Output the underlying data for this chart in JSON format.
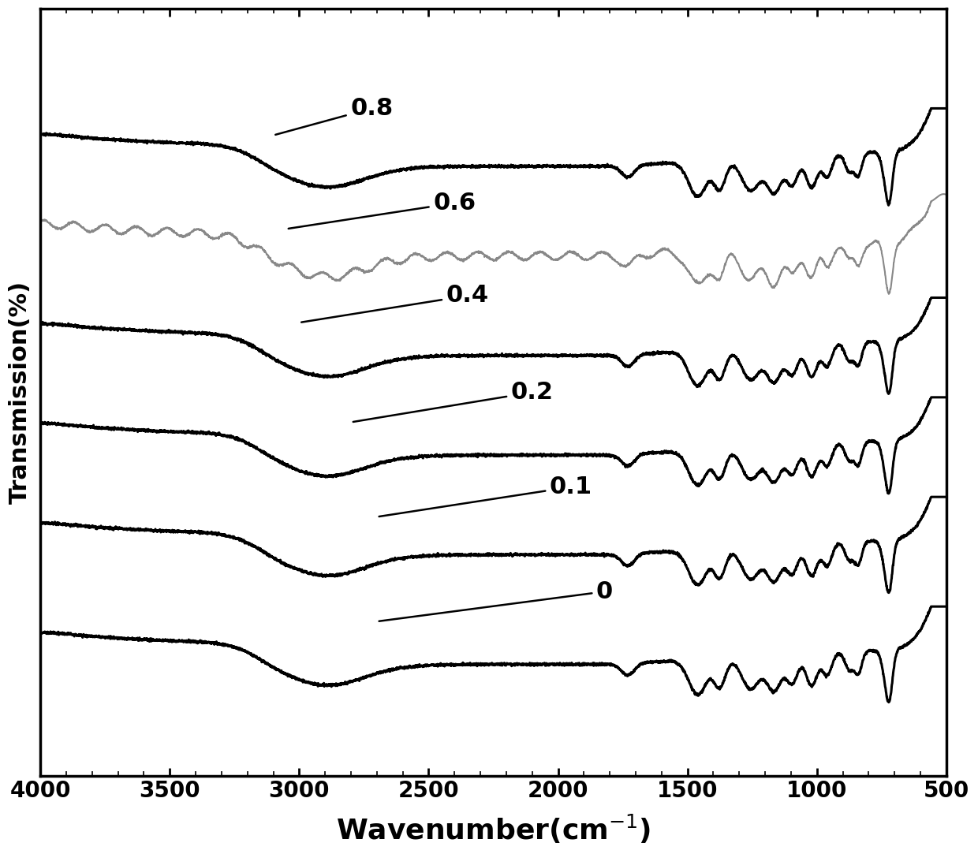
{
  "ylabel": "Transmission(%)",
  "xlim": [
    4000,
    500
  ],
  "labels": [
    "0.8",
    "0.6",
    "0.4",
    "0.2",
    "0.1",
    "0"
  ],
  "offsets": [
    5.0,
    4.1,
    3.1,
    2.1,
    1.1,
    0.0
  ],
  "xticks": [
    4000,
    3500,
    3000,
    2500,
    2000,
    1500,
    1000,
    500
  ],
  "background_color": "#ffffff",
  "line_color": "#000000",
  "line_color_06": "#888888",
  "linewidth": 2.2,
  "linewidth_06": 1.5,
  "fontsize_tick": 20,
  "fontsize_ylabel": 22,
  "fontsize_xlabel": 26,
  "fontsize_ann": 22
}
